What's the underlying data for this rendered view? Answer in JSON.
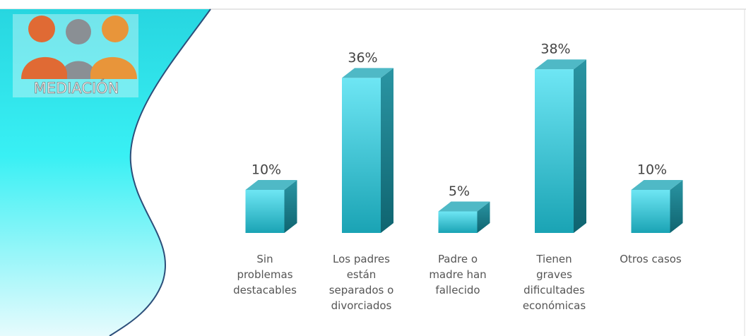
{
  "chart_data": {
    "type": "bar",
    "logo": "MEDIACIÓN",
    "categories": [
      "Sin problemas destacables",
      "Los padres están separados o divorciados",
      "Padre o madre han fallecido",
      "Tienen graves dificultades económicas",
      "Otros casos"
    ],
    "values": [
      10,
      36,
      5,
      38,
      10
    ],
    "value_labels": [
      "10%",
      "36%",
      "5%",
      "38%",
      "10%"
    ],
    "color": "#2bb8c8"
  }
}
